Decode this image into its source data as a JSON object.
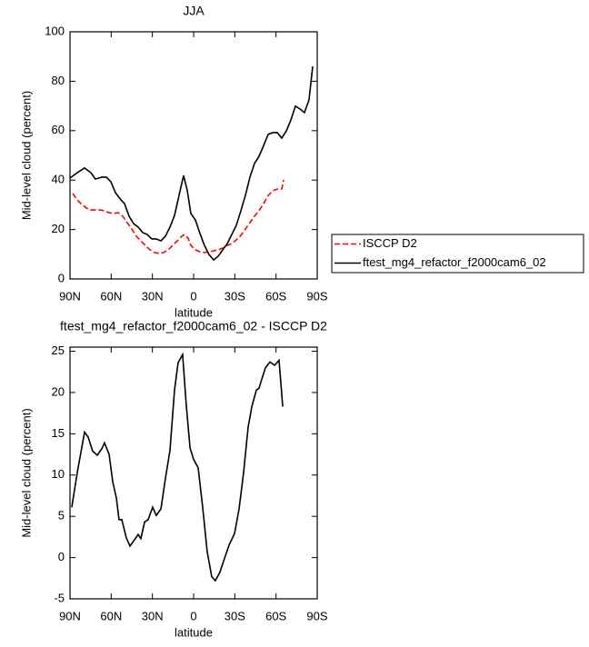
{
  "chart_data": [
    {
      "type": "line",
      "title": "JJA",
      "xlabel": "latitude",
      "ylabel": "Mid-level cloud (percent)",
      "xlim": [
        90,
        -90
      ],
      "xticks": [
        {
          "value": 90,
          "label": "90N"
        },
        {
          "value": 60,
          "label": "60N"
        },
        {
          "value": 30,
          "label": "30N"
        },
        0,
        {
          "value": -30,
          "label": "30S"
        },
        {
          "value": -60,
          "label": "60S"
        },
        {
          "value": -90,
          "label": "90S"
        }
      ],
      "ylim": [
        0,
        100
      ],
      "yticks": [
        0,
        20,
        40,
        60,
        80,
        100
      ],
      "legend": "right",
      "series": [
        {
          "name": "ISCCP D2",
          "color": "#ff0000",
          "line_style": "dashed",
          "x": [
            88,
            84.7,
            81.4,
            78.1,
            74.8,
            68.2,
            64.9,
            61.5,
            58.2,
            54.9,
            51.6,
            48.3,
            45,
            41.7,
            38.4,
            35.1,
            31.8,
            28.5,
            25.1,
            21.8,
            18.5,
            15.2,
            11.9,
            8.6,
            6.6,
            4,
            2,
            -1.3,
            -4.6,
            -7.9,
            -11.2,
            -14.6,
            -17.9,
            -21.2,
            -24.5,
            -27.8,
            -31.1,
            -34.4,
            -37.7,
            -41,
            -44.3,
            -47.6,
            -51,
            -54.3,
            -57.6,
            -60.9,
            -64.2,
            -65.5
          ],
          "values": [
            34.6,
            32,
            30.1,
            28.7,
            27.9,
            27.9,
            27.6,
            26.8,
            26.5,
            26.8,
            25.4,
            22.8,
            20.2,
            17.3,
            15.4,
            13.6,
            11.8,
            10.7,
            10.3,
            10.7,
            11.8,
            13.6,
            15.4,
            17.3,
            18,
            16.5,
            13.6,
            11.8,
            11,
            10.7,
            11,
            11.4,
            11.8,
            12.5,
            13.6,
            14.3,
            15.8,
            17.6,
            20.2,
            22.8,
            25.4,
            27.6,
            30.5,
            33.8,
            35.7,
            36.4,
            36.4,
            40.1
          ]
        },
        {
          "name": "ftest_mg4_refactor_f2000cam6_02",
          "color": "#000000",
          "line_style": "solid",
          "x": [
            90,
            84.7,
            79.4,
            74.8,
            71.5,
            66.8,
            63.5,
            60.2,
            56.9,
            52.9,
            50.3,
            47,
            43.7,
            40.4,
            37.1,
            33.8,
            30.5,
            27.2,
            23.8,
            20.5,
            17.2,
            13.9,
            10.6,
            7.3,
            4.6,
            2,
            -1.3,
            -4.6,
            -7.9,
            -11.2,
            -14.6,
            -17.9,
            -21.2,
            -24.5,
            -27.8,
            -31.1,
            -34.4,
            -37.7,
            -41,
            -44.3,
            -47.6,
            -51,
            -54.3,
            -57.6,
            -60.9,
            -64.2,
            -67.5,
            -70.8,
            -74.1,
            -77.4,
            -80.7,
            -84,
            -86.7
          ],
          "values": [
            40.8,
            43,
            44.9,
            43,
            40.4,
            41.2,
            41.2,
            39.3,
            34.9,
            32,
            30.5,
            25.4,
            22.4,
            21,
            18.8,
            18,
            16.2,
            16.2,
            15.4,
            17.3,
            21,
            25.7,
            33.8,
            41.9,
            35.7,
            26.5,
            23.9,
            18.4,
            13.6,
            9.9,
            7.7,
            9.2,
            11.8,
            14.3,
            18,
            21.7,
            27.6,
            33.8,
            41.2,
            46.7,
            49.6,
            54,
            58.5,
            59.2,
            59.2,
            57,
            59.9,
            64.3,
            69.9,
            68.8,
            67.3,
            72.4,
            86
          ]
        }
      ]
    },
    {
      "type": "line",
      "title": "ftest_mg4_refactor_f2000cam6_02 - ISCCP D2",
      "xlabel": "latitude",
      "ylabel": "Mid-level cloud (percent)",
      "xlim": [
        90,
        -90
      ],
      "xticks": [
        {
          "value": 90,
          "label": "90N"
        },
        {
          "value": 60,
          "label": "60N"
        },
        {
          "value": 30,
          "label": "30N"
        },
        0,
        {
          "value": -30,
          "label": "30S"
        },
        {
          "value": -60,
          "label": "60S"
        },
        {
          "value": -90,
          "label": "90S"
        }
      ],
      "ylim": [
        -5,
        25.5
      ],
      "yticks": [
        -5,
        0,
        5,
        10,
        15,
        20,
        25
      ],
      "series": [
        {
          "color": "#000000",
          "line_style": "solid",
          "x": [
            88.7,
            84.7,
            79.4,
            76.8,
            73.5,
            70.1,
            66.8,
            64.9,
            61.5,
            58.9,
            56.2,
            54.3,
            52.3,
            49,
            46.3,
            43.7,
            40.4,
            38.4,
            35.7,
            33.1,
            29.8,
            27.2,
            23.8,
            20.5,
            17.2,
            13.9,
            11.3,
            8,
            5.4,
            2.6,
            0,
            -3.3,
            -6.6,
            -9.9,
            -13.2,
            -15.8,
            -19.1,
            -22.5,
            -25.8,
            -29.8,
            -33.1,
            -36.4,
            -39.7,
            -42.4,
            -45.7,
            -47.6,
            -49.6,
            -52.3,
            -55.6,
            -58.9,
            -62.2,
            -64.9
          ],
          "values": [
            6.1,
            10.3,
            15.2,
            14.6,
            12.9,
            12.4,
            13.2,
            13.9,
            12.5,
            9.2,
            7.2,
            4.6,
            4.6,
            2.4,
            1.4,
            2,
            2.8,
            2.3,
            4.3,
            4.6,
            6.1,
            5.1,
            5.9,
            9.6,
            13,
            20.3,
            23.6,
            24.6,
            18.6,
            13.3,
            11.9,
            10.9,
            6.1,
            0.7,
            -2.3,
            -2.8,
            -1.8,
            -0.1,
            1.5,
            2.9,
            5.9,
            10.3,
            15.8,
            18.3,
            20.3,
            20.5,
            21.6,
            23,
            23.7,
            23.3,
            23.9,
            18.3
          ]
        }
      ]
    }
  ]
}
